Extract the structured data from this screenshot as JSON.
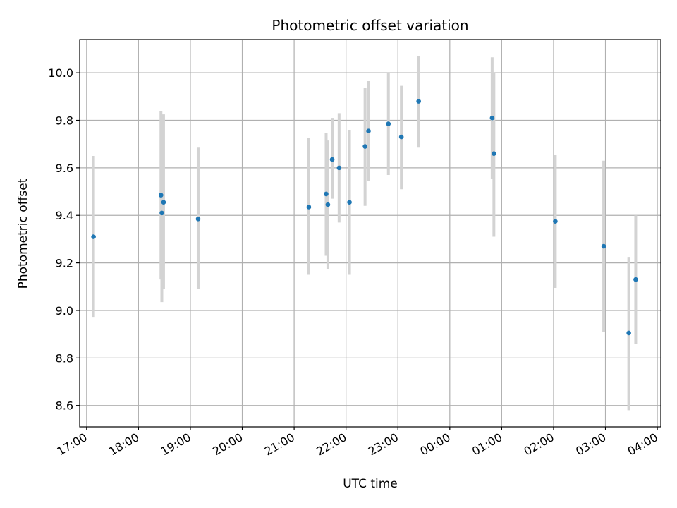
{
  "chart_data": {
    "type": "scatter",
    "title": "Photometric offset variation",
    "xlabel": "UTC time",
    "ylabel": "Photometric offset",
    "x_tick_labels": [
      "17:00",
      "18:00",
      "19:00",
      "20:00",
      "21:00",
      "22:00",
      "23:00",
      "00:00",
      "01:00",
      "02:00",
      "03:00",
      "04:00"
    ],
    "y_ticks": [
      8.6,
      8.8,
      9.0,
      9.2,
      9.4,
      9.6,
      9.8,
      10.0
    ],
    "ylim": [
      8.51,
      10.14
    ],
    "xlim": [
      "16:52",
      "04:04"
    ],
    "grid": true,
    "colors": {
      "marker": "#1f77b4",
      "errorbar": "#d3d3d3"
    },
    "points": [
      {
        "time": "17:08",
        "y": 9.31,
        "y_low": 8.97,
        "y_high": 9.65
      },
      {
        "time": "18:26",
        "y": 9.485,
        "y_low": 9.13,
        "y_high": 9.84
      },
      {
        "time": "18:27",
        "y": 9.41,
        "y_low": 9.035,
        "y_high": 9.785
      },
      {
        "time": "18:29",
        "y": 9.455,
        "y_low": 9.09,
        "y_high": 9.825
      },
      {
        "time": "19:09",
        "y": 9.385,
        "y_low": 9.09,
        "y_high": 9.685
      },
      {
        "time": "21:17",
        "y": 9.435,
        "y_low": 9.15,
        "y_high": 9.725
      },
      {
        "time": "21:37",
        "y": 9.49,
        "y_low": 9.23,
        "y_high": 9.745
      },
      {
        "time": "21:39",
        "y": 9.445,
        "y_low": 9.175,
        "y_high": 9.715
      },
      {
        "time": "21:44",
        "y": 9.635,
        "y_low": 9.47,
        "y_high": 9.81
      },
      {
        "time": "21:52",
        "y": 9.6,
        "y_low": 9.37,
        "y_high": 9.83
      },
      {
        "time": "22:04",
        "y": 9.455,
        "y_low": 9.15,
        "y_high": 9.76
      },
      {
        "time": "22:22",
        "y": 9.69,
        "y_low": 9.44,
        "y_high": 9.935
      },
      {
        "time": "22:26",
        "y": 9.755,
        "y_low": 9.545,
        "y_high": 9.965
      },
      {
        "time": "22:49",
        "y": 9.785,
        "y_low": 9.57,
        "y_high": 10.0
      },
      {
        "time": "23:04",
        "y": 9.73,
        "y_low": 9.51,
        "y_high": 9.945
      },
      {
        "time": "23:24",
        "y": 9.88,
        "y_low": 9.685,
        "y_high": 10.07
      },
      {
        "time": "00:49",
        "y": 9.81,
        "y_low": 9.555,
        "y_high": 10.065
      },
      {
        "time": "00:51",
        "y": 9.66,
        "y_low": 9.31,
        "y_high": 10.0
      },
      {
        "time": "02:02",
        "y": 9.375,
        "y_low": 9.095,
        "y_high": 9.655
      },
      {
        "time": "02:58",
        "y": 9.27,
        "y_low": 8.91,
        "y_high": 9.63
      },
      {
        "time": "03:27",
        "y": 8.905,
        "y_low": 8.58,
        "y_high": 9.225
      },
      {
        "time": "03:35",
        "y": 9.13,
        "y_low": 8.86,
        "y_high": 9.4
      }
    ]
  }
}
